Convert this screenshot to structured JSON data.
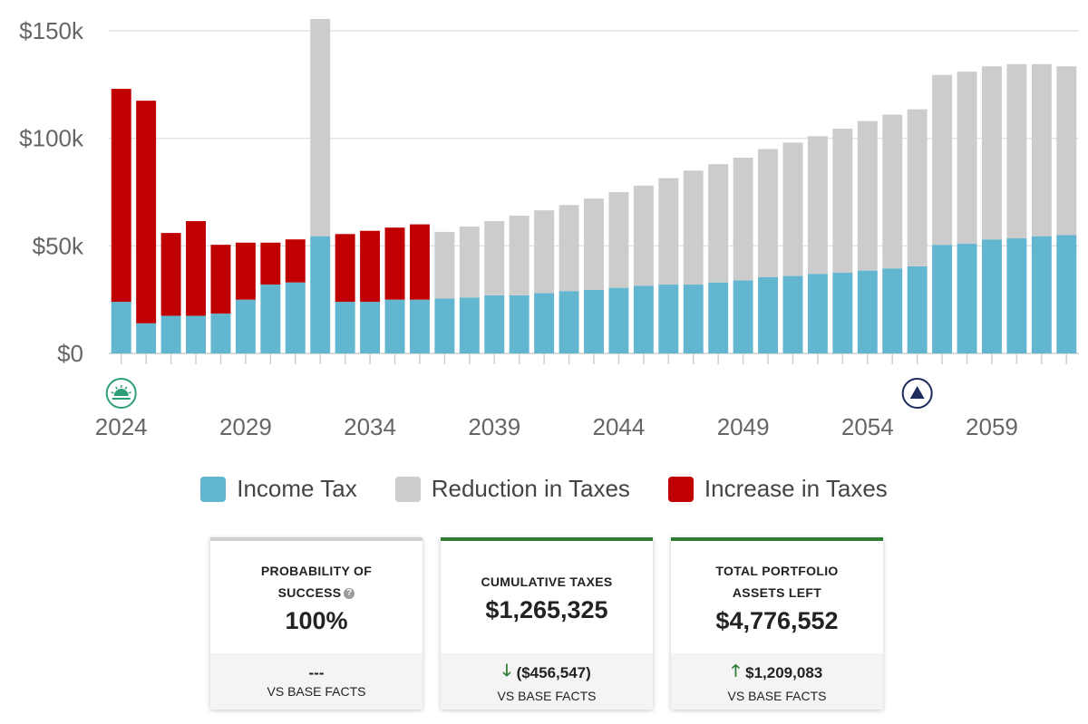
{
  "chart_data": {
    "type": "bar",
    "stacked": true,
    "x": [
      2024,
      2025,
      2026,
      2027,
      2028,
      2029,
      2030,
      2031,
      2032,
      2033,
      2034,
      2035,
      2036,
      2037,
      2038,
      2039,
      2040,
      2041,
      2042,
      2043,
      2044,
      2045,
      2046,
      2047,
      2048,
      2049,
      2050,
      2051,
      2052,
      2053,
      2054,
      2055,
      2056,
      2057,
      2058,
      2059,
      2060,
      2061,
      2062
    ],
    "x_tick_labels": [
      "2024",
      "2029",
      "2034",
      "2039",
      "2044",
      "2049",
      "2054",
      "2059"
    ],
    "y_tick_labels": [
      "$0",
      "$50k",
      "$100k",
      "$150k"
    ],
    "ylim": [
      0,
      150000
    ],
    "grid": true,
    "legend_position": "bottom",
    "series": [
      {
        "name": "Income Tax",
        "color": "#62b6cf",
        "values": [
          24000,
          14000,
          17500,
          17500,
          18500,
          25000,
          32000,
          33000,
          54500,
          24000,
          24000,
          25000,
          25000,
          25500,
          26000,
          27000,
          27000,
          28000,
          29000,
          29500,
          30500,
          31500,
          32000,
          32000,
          33000,
          34000,
          35500,
          36000,
          37000,
          37500,
          38500,
          39500,
          40500,
          50500,
          51000,
          53000,
          53500,
          54500,
          55000
        ]
      },
      {
        "name": "Reduction in Taxes",
        "color": "#cccccc",
        "values": [
          0,
          0,
          0,
          0,
          0,
          0,
          0,
          0,
          101000,
          0,
          0,
          0,
          0,
          31000,
          33000,
          34500,
          37000,
          38500,
          40000,
          42500,
          44500,
          46500,
          49500,
          53000,
          55000,
          57000,
          59500,
          62000,
          64000,
          67000,
          69500,
          71500,
          73000,
          79000,
          80000,
          80500,
          81000,
          80000,
          78500
        ]
      },
      {
        "name": "Increase in Taxes",
        "color": "#c00000",
        "values": [
          99000,
          103500,
          38500,
          44000,
          32000,
          26500,
          19500,
          20000,
          0,
          31500,
          33000,
          33500,
          35000,
          0,
          0,
          0,
          0,
          0,
          0,
          0,
          0,
          0,
          0,
          0,
          0,
          0,
          0,
          0,
          0,
          0,
          0,
          0,
          0,
          0,
          0,
          0,
          0,
          0,
          0
        ]
      }
    ],
    "markers": [
      {
        "x": 2024,
        "icon": "sunrise-icon",
        "color": "#2e9e7a"
      },
      {
        "x": 2056,
        "icon": "mountain-peak-icon",
        "color": "#1c2a5c"
      }
    ]
  },
  "legend": {
    "income_tax": {
      "label": "Income Tax",
      "color": "#62b6cf"
    },
    "reduction": {
      "label": "Reduction in Taxes",
      "color": "#cccccc"
    },
    "increase": {
      "label": "Increase in Taxes",
      "color": "#c00000"
    }
  },
  "cards": {
    "probability": {
      "label": "PROBABILITY OF SUCCESS",
      "value": "100%",
      "delta": "---",
      "vs": "VS BASE FACTS"
    },
    "cumulative_taxes": {
      "label": "CUMULATIVE TAXES",
      "value": "$1,265,325",
      "delta": "($456,547)",
      "vs": "VS BASE FACTS",
      "delta_direction": "down"
    },
    "portfolio_assets": {
      "label": "TOTAL PORTFOLIO ASSETS LEFT",
      "value": "$4,776,552",
      "delta": "$1,209,083",
      "vs": "VS BASE FACTS",
      "delta_direction": "up"
    }
  }
}
